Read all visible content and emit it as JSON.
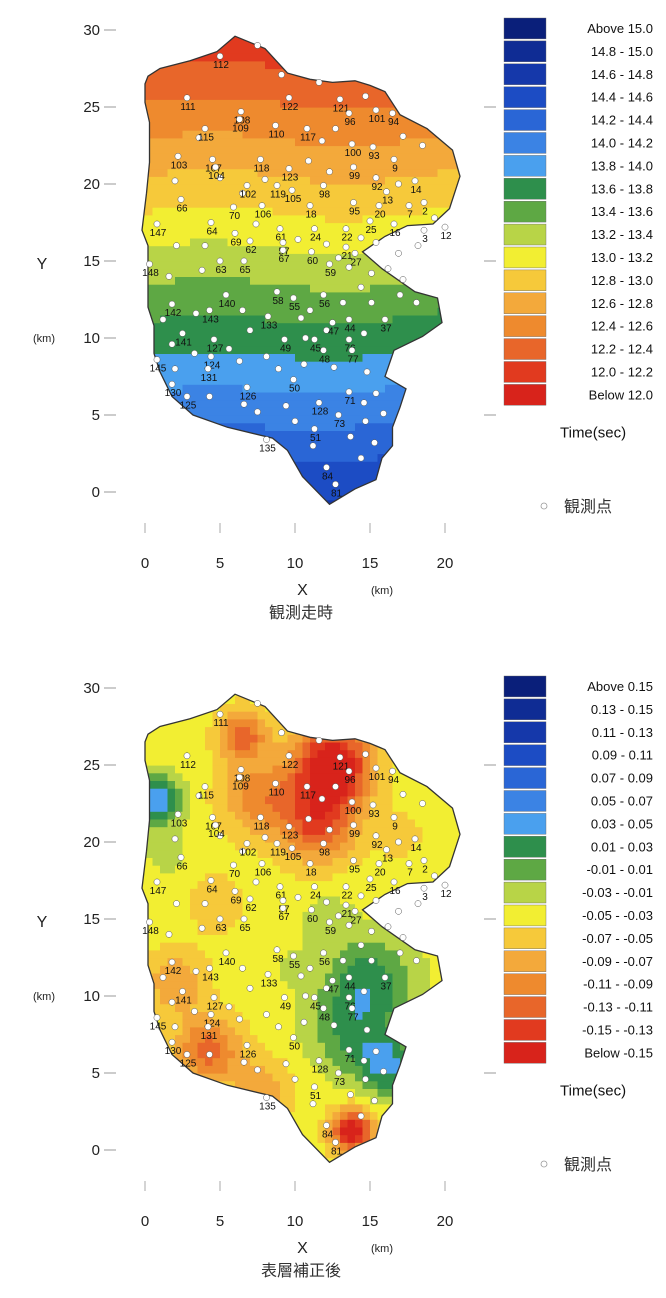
{
  "maps": [
    {
      "id": "observed",
      "caption": "観測走時",
      "x_axis": {
        "label": "X",
        "unit": "(km)",
        "ticks": [
          "0",
          "5",
          "10",
          "15",
          "20"
        ]
      },
      "y_axis": {
        "label": "Y",
        "unit": "(km)",
        "ticks": [
          "0",
          "5",
          "10",
          "15",
          "20",
          "25",
          "30"
        ]
      },
      "legend": {
        "title": "Time(sec)",
        "marker_label": "観測点",
        "items": [
          {
            "label": "Above  15.0",
            "color": "#0a1f7a"
          },
          {
            "label": "14.8 - 15.0",
            "color": "#0f2c94"
          },
          {
            "label": "14.6 - 14.8",
            "color": "#1538aa"
          },
          {
            "label": "14.4 - 14.6",
            "color": "#1c4cc4"
          },
          {
            "label": "14.2 - 14.4",
            "color": "#2a66d6"
          },
          {
            "label": "14.0 - 14.2",
            "color": "#3b83e4"
          },
          {
            "label": "13.8 - 14.0",
            "color": "#4aa0ee"
          },
          {
            "label": "13.6 - 13.8",
            "color": "#2e8f4c"
          },
          {
            "label": "13.4 - 13.6",
            "color": "#5ea844"
          },
          {
            "label": "13.2 - 13.4",
            "color": "#b8d447"
          },
          {
            "label": "13.0 - 13.2",
            "color": "#f2ee32"
          },
          {
            "label": "12.8 - 13.0",
            "color": "#f6c93a"
          },
          {
            "label": "12.6 - 12.8",
            "color": "#f3a93b"
          },
          {
            "label": "12.4 - 12.6",
            "color": "#ee8a2e"
          },
          {
            "label": "12.2 - 12.4",
            "color": "#e8662a"
          },
          {
            "label": "12.0 - 12.2",
            "color": "#e13a1f"
          },
          {
            "label": "Below  12.0",
            "color": "#d8231b"
          }
        ]
      },
      "station_labels": [
        "112",
        "111",
        "122",
        "121",
        "96",
        "101",
        "94",
        "108",
        "110",
        "117",
        "115",
        "109",
        "100",
        "93",
        "103",
        "107",
        "104",
        "118",
        "123",
        "99",
        "92",
        "9",
        "14",
        "102",
        "119",
        "105",
        "98",
        "95",
        "13",
        "20",
        "7",
        "2",
        "66",
        "70",
        "106",
        "18",
        "25",
        "16",
        "3",
        "12",
        "147",
        "64",
        "69",
        "61",
        "24",
        "22",
        "62",
        "57",
        "21",
        "63",
        "65",
        "67",
        "60",
        "59",
        "27",
        "148",
        "140",
        "58",
        "55",
        "56",
        "142",
        "143",
        "133",
        "47",
        "44",
        "37",
        "141",
        "127",
        "49",
        "45",
        "76",
        "145",
        "124",
        "50",
        "48",
        "77",
        "131",
        "130",
        "126",
        "71",
        "125",
        "128",
        "135",
        "51",
        "73",
        "84",
        "81"
      ]
    },
    {
      "id": "corrected",
      "caption": "表層補正後",
      "x_axis": {
        "label": "X",
        "unit": "(km)",
        "ticks": [
          "0",
          "5",
          "10",
          "15",
          "20"
        ]
      },
      "y_axis": {
        "label": "Y",
        "unit": "(km)",
        "ticks": [
          "0",
          "5",
          "10",
          "15",
          "20",
          "25",
          "30"
        ]
      },
      "legend": {
        "title": "Time(sec)",
        "marker_label": "観測点",
        "items": [
          {
            "label": "Above  0.15",
            "color": "#0a1f7a"
          },
          {
            "label": "0.13 - 0.15",
            "color": "#0f2c94"
          },
          {
            "label": "0.11 - 0.13",
            "color": "#1538aa"
          },
          {
            "label": "0.09 - 0.11",
            "color": "#1c4cc4"
          },
          {
            "label": "0.07 - 0.09",
            "color": "#2a66d6"
          },
          {
            "label": "0.05 - 0.07",
            "color": "#3b83e4"
          },
          {
            "label": "0.03 - 0.05",
            "color": "#4aa0ee"
          },
          {
            "label": "0.01 - 0.03",
            "color": "#2e8f4c"
          },
          {
            "label": "-0.01 - 0.01",
            "color": "#5ea844"
          },
          {
            "label": "-0.03 - -0.01",
            "color": "#b8d447"
          },
          {
            "label": "-0.05 - -0.03",
            "color": "#f2ee32"
          },
          {
            "label": "-0.07 - -0.05",
            "color": "#f6c93a"
          },
          {
            "label": "-0.09 - -0.07",
            "color": "#f3a93b"
          },
          {
            "label": "-0.11 - -0.09",
            "color": "#ee8a2e"
          },
          {
            "label": "-0.13 - -0.11",
            "color": "#e8662a"
          },
          {
            "label": "-0.15 - -0.13",
            "color": "#e13a1f"
          },
          {
            "label": "Below  -0.15",
            "color": "#d8231b"
          }
        ]
      },
      "station_labels": [
        "111",
        "112",
        "122",
        "121",
        "96",
        "101",
        "94",
        "108",
        "110",
        "117",
        "115",
        "109",
        "100",
        "93",
        "103",
        "107",
        "104",
        "118",
        "123",
        "99",
        "92",
        "9",
        "14",
        "102",
        "119",
        "105",
        "98",
        "95",
        "13",
        "20",
        "7",
        "2",
        "66",
        "70",
        "106",
        "18",
        "25",
        "16",
        "3",
        "12",
        "147",
        "64",
        "69",
        "61",
        "24",
        "22",
        "62",
        "57",
        "21",
        "63",
        "65",
        "67",
        "60",
        "59",
        "27",
        "148",
        "140",
        "58",
        "55",
        "56",
        "142",
        "143",
        "133",
        "47",
        "44",
        "37",
        "141",
        "127",
        "49",
        "45",
        "76",
        "145",
        "124",
        "50",
        "48",
        "77",
        "131",
        "130",
        "126",
        "71",
        "125",
        "128",
        "135",
        "51",
        "73",
        "84",
        "81"
      ]
    }
  ]
}
